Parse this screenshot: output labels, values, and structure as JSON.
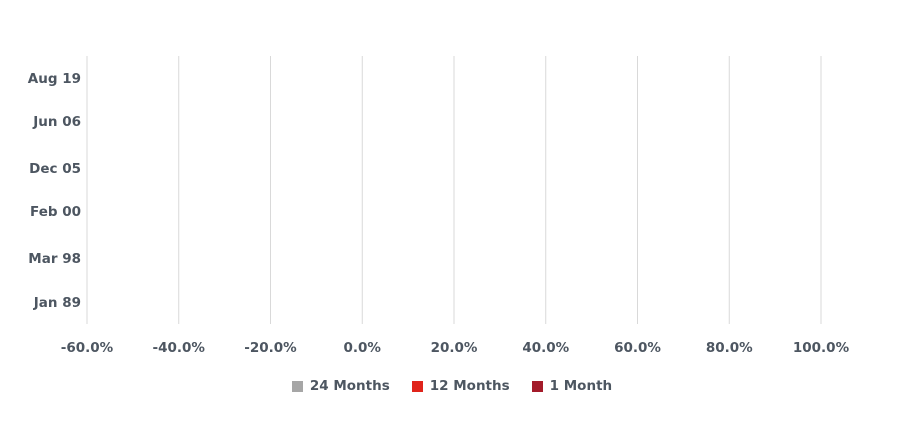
{
  "chart_data": {
    "type": "bar",
    "orientation": "horizontal",
    "categories": [
      "Aug 19",
      "Jun 06",
      "Dec 05",
      "Feb 00",
      "Mar 98",
      "Jan 89"
    ],
    "x_ticks": [
      "-60.0%",
      "-40.0%",
      "-20.0%",
      "0.0%",
      "20.0%",
      "40.0%",
      "60.0%",
      "80.0%",
      "100.0%"
    ],
    "xlim": [
      -60,
      100
    ],
    "grid": true,
    "legend_position": "bottom",
    "series": [
      {
        "name": "24 Months",
        "color": "#a6a6a6",
        "values": [
          null,
          null,
          null,
          null,
          null,
          null
        ]
      },
      {
        "name": "12 Months",
        "color": "#e0241b",
        "values": [
          null,
          null,
          null,
          null,
          null,
          null
        ]
      },
      {
        "name": "1 Month",
        "color": "#a31b2a",
        "values": [
          null,
          null,
          null,
          null,
          null,
          null
        ]
      }
    ]
  }
}
